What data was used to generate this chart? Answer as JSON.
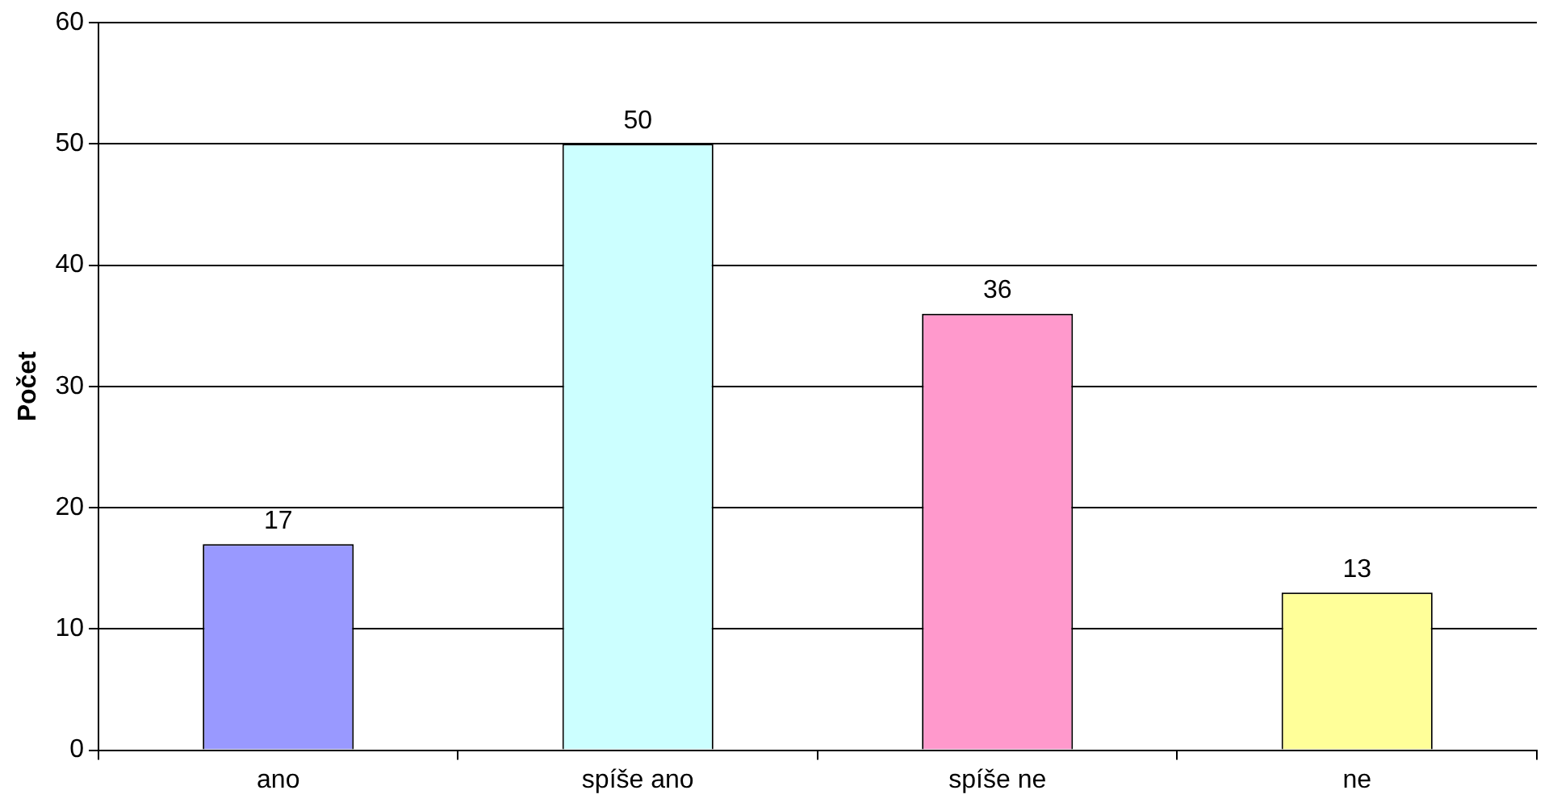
{
  "chart_data": {
    "type": "bar",
    "ylabel": "Počet",
    "categories": [
      "ano",
      "spíše ano",
      "spíše ne",
      "ne"
    ],
    "values": [
      17,
      50,
      36,
      13
    ],
    "colors": [
      "#9999ff",
      "#ccffff",
      "#ff99cc",
      "#ffff99"
    ],
    "ylim": [
      0,
      60
    ],
    "yticks": [
      0,
      10,
      20,
      30,
      40,
      50,
      60
    ],
    "grid": "y",
    "legend": false,
    "data_labels": true
  }
}
